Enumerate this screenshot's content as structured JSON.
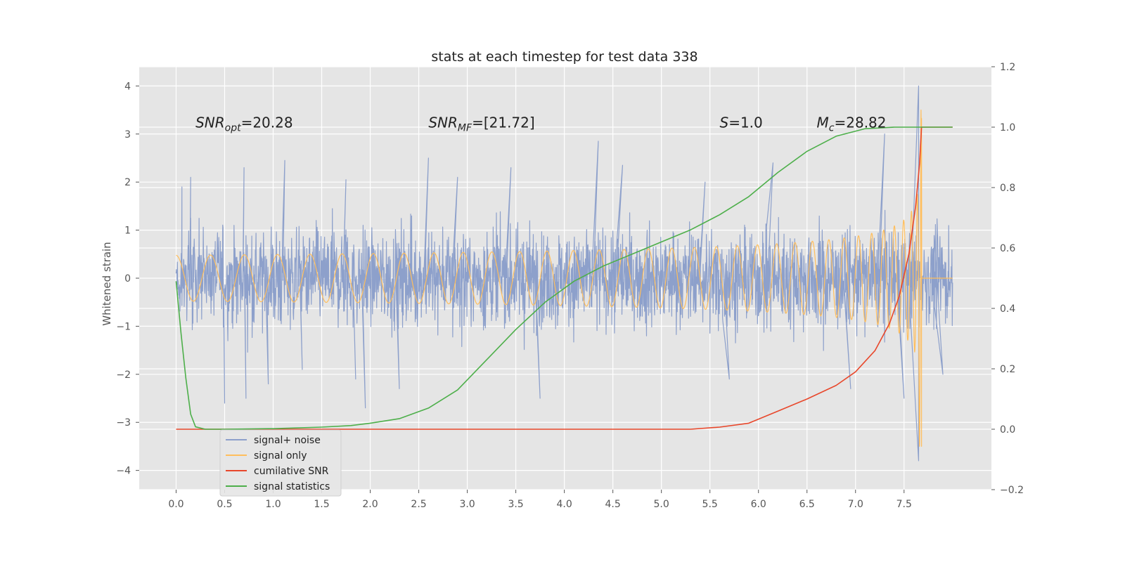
{
  "chart_data": {
    "type": "line",
    "title": "stats at each timestep for test data 338",
    "ylabel": "Whitened strain",
    "y2label": "",
    "xlim": [
      -0.38,
      8.4
    ],
    "ylim": [
      -4.4,
      4.4
    ],
    "y2lim": [
      -0.2,
      1.2
    ],
    "x_ticks": [
      0.0,
      0.5,
      1.0,
      1.5,
      2.0,
      2.5,
      3.0,
      3.5,
      4.0,
      4.5,
      5.0,
      5.5,
      6.0,
      6.5,
      7.0,
      7.5
    ],
    "x_tick_labels": [
      "0.0",
      "0.5",
      "1.0",
      "1.5",
      "2.0",
      "2.5",
      "3.0",
      "3.5",
      "4.0",
      "4.5",
      "5.0",
      "5.5",
      "6.0",
      "6.5",
      "7.0",
      "7.5"
    ],
    "y_ticks": [
      4,
      3,
      2,
      1,
      0,
      -1,
      -2,
      -3,
      -4
    ],
    "y_tick_labels": [
      "4",
      "3",
      "2",
      "1",
      "0",
      "−1",
      "−2",
      "−3",
      "−4"
    ],
    "y2_ticks": [
      1.2,
      1.0,
      0.8,
      0.6,
      0.4,
      0.2,
      0.0,
      -0.2
    ],
    "y2_tick_labels": [
      "1.2",
      "1.0",
      "0.8",
      "0.6",
      "0.4",
      "0.2",
      "0.0",
      "−0.2"
    ],
    "grid": true,
    "legend_position": "bottom-left",
    "annotations": [
      {
        "label": "SNR_opt=20.28",
        "x": 0.2,
        "y": 3.25
      },
      {
        "label": "SNR_MF=[21.72]",
        "x": 2.6,
        "y": 3.25
      },
      {
        "label": "S=1.0",
        "x": 5.6,
        "y": 3.25
      },
      {
        "label": "M_c=28.82",
        "x": 6.6,
        "y": 3.25
      }
    ],
    "series": [
      {
        "name": "signal+ noise",
        "axis": "left",
        "color": "#8da0cb",
        "kind": "noise",
        "x_range": [
          0.0,
          8.0
        ],
        "typical_range": [
          -1.5,
          1.5
        ],
        "peaks": [
          {
            "x": 0.06,
            "y": 1.9
          },
          {
            "x": 0.15,
            "y": 2.1
          },
          {
            "x": 0.5,
            "y": -2.6
          },
          {
            "x": 0.7,
            "y": 2.3
          },
          {
            "x": 0.72,
            "y": -2.5
          },
          {
            "x": 0.95,
            "y": -2.2
          },
          {
            "x": 1.12,
            "y": 2.45
          },
          {
            "x": 1.3,
            "y": -1.9
          },
          {
            "x": 1.75,
            "y": 2.05
          },
          {
            "x": 1.85,
            "y": -2.1
          },
          {
            "x": 1.95,
            "y": -2.7
          },
          {
            "x": 2.3,
            "y": -2.3
          },
          {
            "x": 2.6,
            "y": 2.5
          },
          {
            "x": 2.9,
            "y": 2.1
          },
          {
            "x": 3.45,
            "y": 2.3
          },
          {
            "x": 3.75,
            "y": -2.5
          },
          {
            "x": 4.35,
            "y": 2.85
          },
          {
            "x": 4.6,
            "y": 2.35
          },
          {
            "x": 5.45,
            "y": 2.0
          },
          {
            "x": 5.7,
            "y": -2.1
          },
          {
            "x": 6.15,
            "y": 2.4
          },
          {
            "x": 6.95,
            "y": -2.3
          },
          {
            "x": 7.3,
            "y": 3.0
          },
          {
            "x": 7.5,
            "y": -2.5
          },
          {
            "x": 7.65,
            "y": 4.0
          },
          {
            "x": 7.65,
            "y": -3.8
          },
          {
            "x": 7.9,
            "y": -2.0
          }
        ]
      },
      {
        "name": "signal only",
        "axis": "left",
        "color": "#ffbe5c",
        "kind": "chirp",
        "x_range": [
          0.0,
          7.68
        ],
        "peak_amplitude": 3.5
      },
      {
        "name": "cumilative SNR",
        "axis": "right",
        "color": "#e8472b",
        "points": [
          [
            0.0,
            0.0
          ],
          [
            5.2,
            0.0
          ],
          [
            5.3,
            0.0
          ],
          [
            5.6,
            0.007
          ],
          [
            5.9,
            0.02
          ],
          [
            6.2,
            0.06
          ],
          [
            6.5,
            0.1
          ],
          [
            6.8,
            0.145
          ],
          [
            7.0,
            0.19
          ],
          [
            7.2,
            0.26
          ],
          [
            7.35,
            0.35
          ],
          [
            7.45,
            0.44
          ],
          [
            7.55,
            0.58
          ],
          [
            7.62,
            0.74
          ],
          [
            7.66,
            0.88
          ],
          [
            7.68,
            1.0
          ],
          [
            8.0,
            1.0
          ]
        ]
      },
      {
        "name": "signal statistics",
        "axis": "right",
        "color": "#4daf4a",
        "points": [
          [
            0.0,
            0.49
          ],
          [
            0.05,
            0.32
          ],
          [
            0.1,
            0.17
          ],
          [
            0.15,
            0.05
          ],
          [
            0.2,
            0.008
          ],
          [
            0.3,
            0.0
          ],
          [
            0.5,
            0.0
          ],
          [
            1.0,
            0.002
          ],
          [
            1.5,
            0.007
          ],
          [
            1.8,
            0.012
          ],
          [
            2.0,
            0.02
          ],
          [
            2.3,
            0.035
          ],
          [
            2.6,
            0.07
          ],
          [
            2.9,
            0.13
          ],
          [
            3.2,
            0.23
          ],
          [
            3.5,
            0.33
          ],
          [
            3.8,
            0.42
          ],
          [
            4.1,
            0.49
          ],
          [
            4.4,
            0.54
          ],
          [
            4.7,
            0.58
          ],
          [
            5.0,
            0.62
          ],
          [
            5.3,
            0.66
          ],
          [
            5.6,
            0.71
          ],
          [
            5.9,
            0.77
          ],
          [
            6.2,
            0.85
          ],
          [
            6.5,
            0.92
          ],
          [
            6.8,
            0.97
          ],
          [
            7.1,
            0.995
          ],
          [
            7.4,
            1.0
          ],
          [
            7.68,
            1.0
          ],
          [
            8.0,
            1.0
          ]
        ]
      }
    ]
  }
}
